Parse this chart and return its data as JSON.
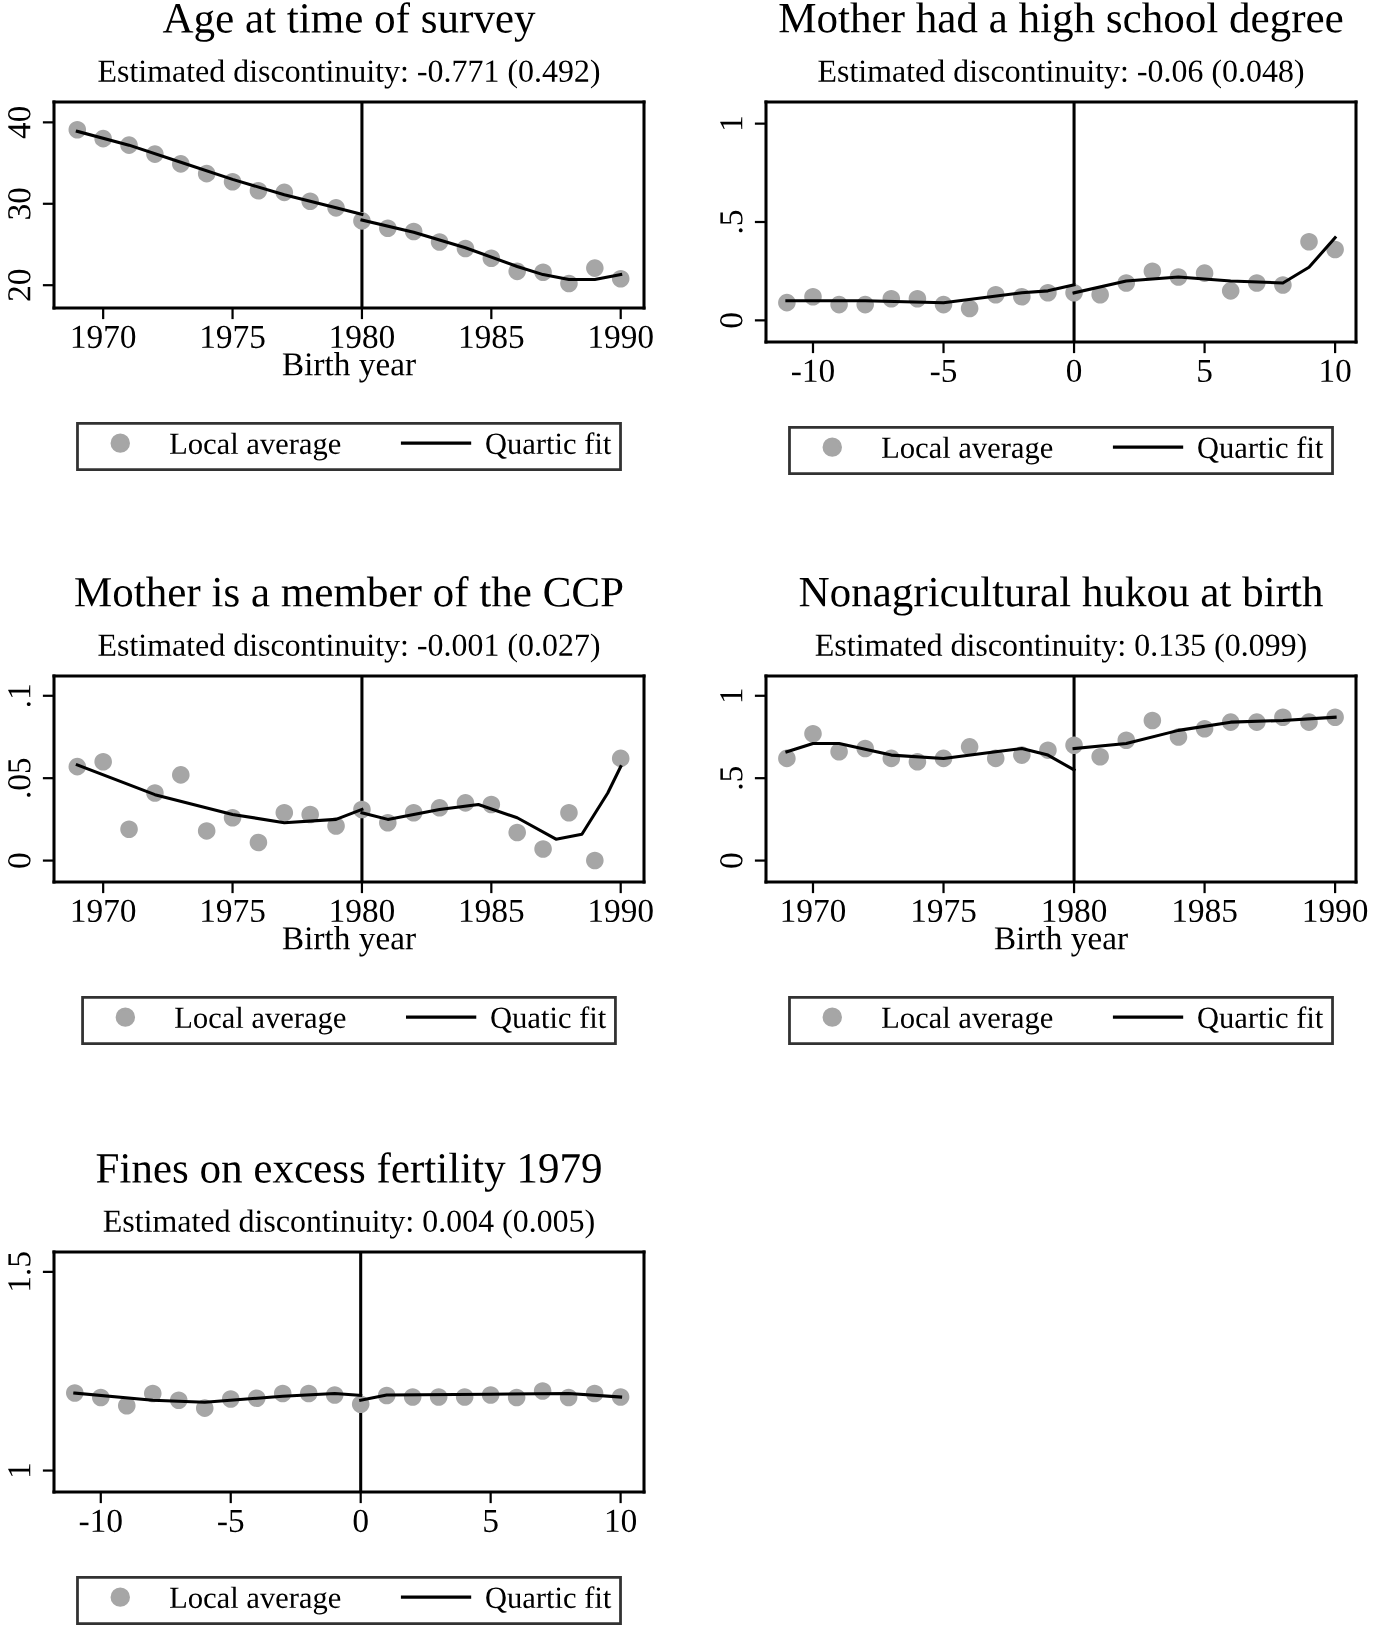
{
  "chart_data": [
    {
      "type": "scatter",
      "title": "Age at time of survey",
      "subtitle": "Estimated discontinuity: -0.771 (0.492)",
      "xlabel": "Birth year",
      "x": [
        1969,
        1970,
        1971,
        1972,
        1973,
        1974,
        1975,
        1976,
        1977,
        1978,
        1979,
        1980,
        1981,
        1982,
        1983,
        1984,
        1985,
        1986,
        1987,
        1988,
        1989,
        1990
      ],
      "xlim": [
        1968.1,
        1990.9
      ],
      "xticks": [
        1970,
        1975,
        1980,
        1985,
        1990
      ],
      "ylim": [
        17.2,
        42.5
      ],
      "yticks": [
        20,
        30,
        40
      ],
      "legend": "bottom",
      "grid": false,
      "series": [
        {
          "name": "Local average",
          "marker": "circle",
          "color": "#a6a6a6",
          "values": [
            39.1,
            38.0,
            37.2,
            36.1,
            34.9,
            33.7,
            32.7,
            31.6,
            31.4,
            30.3,
            29.5,
            27.9,
            27.0,
            26.6,
            25.3,
            24.5,
            23.3,
            21.7,
            21.6,
            20.2,
            22.1,
            20.8
          ]
        },
        {
          "name": "Quartic fit",
          "type": "line",
          "color": "#000000",
          "x": [
            1969,
            1971,
            1973,
            1975,
            1977,
            1979,
            1980
          ],
          "values": [
            38.9,
            37.2,
            35.1,
            33.0,
            31.1,
            29.5,
            28.7
          ]
        },
        {
          "type": "line",
          "color": "#000000",
          "x": [
            1980,
            1982,
            1984,
            1986,
            1987,
            1988,
            1989,
            1990
          ],
          "values": [
            28.0,
            26.5,
            24.6,
            22.3,
            21.3,
            20.7,
            20.7,
            21.3
          ]
        }
      ],
      "ref_lines": [
        {
          "axis": "x",
          "value": 1980,
          "color": "#000000"
        }
      ]
    },
    {
      "type": "scatter",
      "title": "Mother had a high school degree",
      "subtitle": "Estimated discontinuity: -0.06 (0.048)",
      "x": [
        -11,
        -10,
        -9,
        -8,
        -7,
        -6,
        -5,
        -4,
        -3,
        -2,
        -1,
        0,
        1,
        2,
        3,
        4,
        5,
        6,
        7,
        8,
        9,
        10
      ],
      "xlim": [
        -11.8,
        10.8
      ],
      "xticks": [
        -10,
        -5,
        0,
        5,
        10
      ],
      "ylim": [
        -0.11,
        1.11
      ],
      "yticks": [
        0,
        {
          "value": 0.5,
          "label": ".5"
        },
        1
      ],
      "legend": "bottom",
      "grid": false,
      "series": [
        {
          "name": "Local average",
          "marker": "circle",
          "color": "#a6a6a6",
          "values": [
            0.09,
            0.12,
            0.08,
            0.08,
            0.11,
            0.11,
            0.08,
            0.06,
            0.13,
            0.12,
            0.14,
            0.14,
            0.13,
            0.19,
            0.25,
            0.22,
            0.24,
            0.15,
            0.19,
            0.18,
            0.4,
            0.36
          ]
        },
        {
          "name": "Quartic fit",
          "type": "line",
          "color": "#000000",
          "x": [
            -11,
            -8,
            -5,
            -2,
            -1,
            0
          ],
          "values": [
            0.1,
            0.1,
            0.09,
            0.14,
            0.15,
            0.18
          ]
        },
        {
          "type": "line",
          "color": "#000000",
          "x": [
            0,
            2,
            4,
            6,
            8,
            9,
            10
          ],
          "values": [
            0.14,
            0.2,
            0.22,
            0.2,
            0.19,
            0.27,
            0.42
          ]
        }
      ],
      "ref_lines": [
        {
          "axis": "x",
          "value": 0,
          "color": "#000000"
        }
      ]
    },
    {
      "type": "scatter",
      "title": "Mother is a member of the CCP",
      "subtitle": "Estimated discontinuity: -0.001 (0.027)",
      "xlabel": "Birth year",
      "x": [
        1969,
        1970,
        1971,
        1972,
        1973,
        1974,
        1975,
        1976,
        1977,
        1978,
        1979,
        1980,
        1981,
        1982,
        1983,
        1984,
        1985,
        1986,
        1987,
        1988,
        1989,
        1990
      ],
      "xlim": [
        1968.1,
        1990.9
      ],
      "xticks": [
        1970,
        1975,
        1980,
        1985,
        1990
      ],
      "ylim": [
        -0.013,
        0.112
      ],
      "yticks": [
        0,
        {
          "value": 0.05,
          "label": ".05"
        },
        {
          "value": 0.1,
          "label": ".1"
        }
      ],
      "legend": "bottom",
      "grid": false,
      "series": [
        {
          "name": "Local average",
          "marker": "circle",
          "color": "#a6a6a6",
          "values": [
            0.057,
            0.06,
            0.019,
            0.041,
            0.052,
            0.018,
            0.026,
            0.011,
            0.029,
            0.028,
            0.021,
            0.031,
            0.023,
            0.029,
            0.032,
            0.035,
            0.034,
            0.017,
            0.007,
            0.029,
            0.0,
            0.062
          ]
        },
        {
          "name": "Quatic fit",
          "type": "line",
          "color": "#000000",
          "x": [
            1969,
            1972,
            1975,
            1977,
            1979,
            1980
          ],
          "values": [
            0.058,
            0.04,
            0.028,
            0.023,
            0.025,
            0.031
          ]
        },
        {
          "type": "line",
          "color": "#000000",
          "x": [
            1980,
            1981,
            1983,
            1984.5,
            1986,
            1987.5,
            1988.5,
            1989.5,
            1990
          ],
          "values": [
            0.029,
            0.025,
            0.031,
            0.034,
            0.026,
            0.013,
            0.016,
            0.041,
            0.057
          ]
        }
      ],
      "ref_lines": [
        {
          "axis": "x",
          "value": 1980,
          "color": "#000000"
        }
      ]
    },
    {
      "type": "scatter",
      "title": "Nonagricultural hukou at birth",
      "subtitle": "Estimated discontinuity: 0.135 (0.099)",
      "xlabel": "Birth year",
      "x": [
        1969,
        1970,
        1971,
        1972,
        1973,
        1974,
        1975,
        1976,
        1977,
        1978,
        1979,
        1980,
        1981,
        1982,
        1983,
        1984,
        1985,
        1986,
        1987,
        1988,
        1989,
        1990
      ],
      "xlim": [
        1968.2,
        1990.8
      ],
      "xticks": [
        1970,
        1975,
        1980,
        1985,
        1990
      ],
      "ylim": [
        -0.13,
        1.12
      ],
      "yticks": [
        0,
        {
          "value": 0.5,
          "label": ".5"
        },
        1
      ],
      "legend": "bottom",
      "grid": false,
      "series": [
        {
          "name": "Local average",
          "marker": "circle",
          "color": "#a6a6a6",
          "values": [
            0.62,
            0.77,
            0.66,
            0.68,
            0.62,
            0.6,
            0.62,
            0.69,
            0.62,
            0.64,
            0.67,
            0.7,
            0.63,
            0.73,
            0.85,
            0.75,
            0.8,
            0.84,
            0.84,
            0.87,
            0.84,
            0.87
          ]
        },
        {
          "name": "Quartic fit",
          "type": "line",
          "color": "#000000",
          "x": [
            1969,
            1970,
            1971,
            1973,
            1975,
            1977,
            1978,
            1979,
            1980
          ],
          "values": [
            0.66,
            0.71,
            0.71,
            0.64,
            0.62,
            0.66,
            0.68,
            0.64,
            0.55
          ]
        },
        {
          "type": "line",
          "color": "#000000",
          "x": [
            1980,
            1982,
            1984,
            1986,
            1988,
            1990
          ],
          "values": [
            0.68,
            0.71,
            0.79,
            0.84,
            0.85,
            0.87
          ]
        }
      ],
      "ref_lines": [
        {
          "axis": "x",
          "value": 1980,
          "color": "#000000"
        }
      ]
    },
    {
      "type": "scatter",
      "title": "Fines on excess fertility 1979",
      "subtitle": "Estimated discontinuity: 0.004 (0.005)",
      "x": [
        -11,
        -10,
        -9,
        -8,
        -7,
        -6,
        -5,
        -4,
        -3,
        -2,
        -1,
        0,
        1,
        2,
        3,
        4,
        5,
        6,
        7,
        8,
        9,
        10
      ],
      "xlim": [
        -11.8,
        10.9
      ],
      "xticks": [
        -10,
        -5,
        0,
        5,
        10
      ],
      "ylim": [
        0.946,
        1.55
      ],
      "yticks": [
        1,
        1.5
      ],
      "legend": "bottom",
      "grid": false,
      "series": [
        {
          "name": "Local average",
          "marker": "circle",
          "color": "#a6a6a6",
          "values": [
            1.195,
            1.184,
            1.163,
            1.194,
            1.177,
            1.157,
            1.18,
            1.182,
            1.194,
            1.194,
            1.19,
            1.167,
            1.189,
            1.185,
            1.185,
            1.185,
            1.19,
            1.184,
            1.2,
            1.184,
            1.194,
            1.185
          ]
        },
        {
          "name": "Quartic fit",
          "type": "line",
          "color": "#000000",
          "x": [
            -11,
            -8,
            -6,
            -3,
            -1,
            0
          ],
          "values": [
            1.195,
            1.177,
            1.172,
            1.187,
            1.194,
            1.189
          ]
        },
        {
          "type": "line",
          "color": "#000000",
          "x": [
            0,
            1,
            5,
            8,
            10
          ],
          "values": [
            1.177,
            1.19,
            1.192,
            1.194,
            1.185
          ]
        }
      ],
      "ref_lines": [
        {
          "axis": "x",
          "value": 0,
          "color": "#000000"
        }
      ]
    }
  ]
}
